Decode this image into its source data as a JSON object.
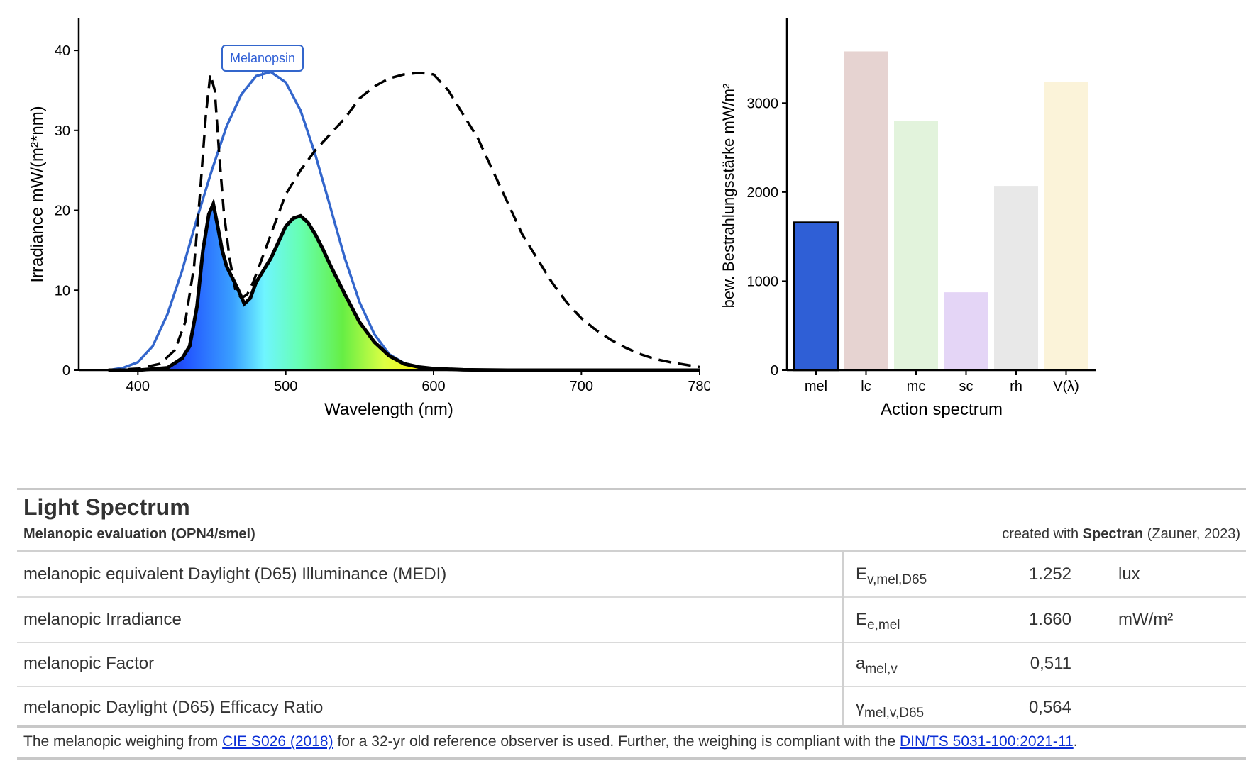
{
  "chart_data": [
    {
      "type": "line",
      "xlabel": "Wavelength (nm)",
      "ylabel": "Irradiance  mW/(m²*nm)",
      "xlim": [
        360,
        780
      ],
      "ylim": [
        0,
        44
      ],
      "xticks": [
        400,
        500,
        600,
        700,
        780
      ],
      "yticks": [
        0,
        10,
        20,
        30,
        40
      ],
      "annotation": "Melanopsin",
      "series": [
        {
          "style": "solid-black-filled-spectrum",
          "x": [
            380,
            400,
            420,
            430,
            435,
            440,
            444,
            448,
            451,
            454,
            457,
            460,
            464,
            468,
            472,
            476,
            480,
            485,
            490,
            495,
            500,
            505,
            510,
            515,
            520,
            525,
            530,
            540,
            550,
            560,
            570,
            580,
            590,
            600,
            620,
            650,
            700,
            780
          ],
          "y": [
            0,
            0,
            0.3,
            1.5,
            3,
            8,
            15,
            19.5,
            20.8,
            18,
            15,
            13,
            11.5,
            10,
            8.3,
            9,
            11,
            12.5,
            14,
            16,
            18,
            19,
            19.3,
            18.5,
            17,
            15.2,
            13.2,
            9.5,
            6,
            3.5,
            1.8,
            0.8,
            0.4,
            0.2,
            0.05,
            0,
            0,
            0
          ]
        },
        {
          "style": "dashed-black",
          "x": [
            380,
            400,
            415,
            425,
            432,
            438,
            442,
            446,
            449,
            452,
            455,
            458,
            462,
            466,
            470,
            474,
            478,
            482,
            490,
            500,
            510,
            520,
            530,
            540,
            550,
            560,
            570,
            580,
            590,
            600,
            610,
            620,
            630,
            640,
            650,
            660,
            670,
            680,
            690,
            700,
            710,
            720,
            730,
            740,
            750,
            760,
            770,
            780
          ],
          "y": [
            0,
            0.2,
            0.8,
            2.5,
            6,
            13,
            22,
            32,
            37,
            35,
            27,
            20,
            14,
            10,
            9,
            9.5,
            11,
            13,
            17,
            22,
            25,
            27.5,
            29.5,
            31.5,
            34,
            35.5,
            36.5,
            37,
            37.2,
            37,
            35,
            32,
            29,
            25,
            21,
            17,
            14,
            11,
            8.5,
            6.5,
            5,
            3.8,
            2.8,
            2,
            1.4,
            1,
            0.7,
            0.4
          ]
        },
        {
          "style": "solid-blue",
          "x": [
            380,
            390,
            400,
            410,
            420,
            430,
            440,
            450,
            460,
            470,
            480,
            490,
            500,
            510,
            520,
            530,
            540,
            550,
            560,
            570,
            580,
            590,
            600,
            620,
            650,
            700,
            780
          ],
          "y": [
            0,
            0.3,
            1,
            3,
            7,
            12.5,
            19,
            25,
            30.5,
            34.5,
            36.8,
            37.3,
            36,
            32.5,
            27,
            20.5,
            14,
            8.5,
            4.5,
            2,
            0.9,
            0.4,
            0.2,
            0.05,
            0,
            0,
            0
          ]
        }
      ]
    },
    {
      "type": "bar",
      "xlabel": "Action spectrum",
      "ylabel": "bew. Bestrahlungsstärke  mW/m²",
      "ylim": [
        0,
        3950
      ],
      "yticks": [
        0,
        1000,
        2000,
        3000
      ],
      "categories": [
        "mel",
        "lc",
        "mc",
        "sc",
        "rh",
        "V(λ)"
      ],
      "values": [
        1660,
        3580,
        2800,
        875,
        2070,
        3240
      ],
      "colors": [
        "#2f5fd6",
        "#e6d3d1",
        "#e2f3dc",
        "#e4d5f6",
        "#e8e8e8",
        "#fbf3d9"
      ]
    }
  ],
  "table": {
    "title": "Light Spectrum",
    "subtitle": "Melanopic evaluation (OPN4/smel)",
    "credit_prefix": "created with ",
    "credit_tool": "Spectran",
    "credit_suffix": " (Zauner, 2023)",
    "rows": [
      {
        "label": "melanopic equivalent Daylight (D65) Illuminance (MEDI)",
        "sym": "E",
        "sub": "v,mel,D65",
        "value": "1.252",
        "unit": "lux"
      },
      {
        "label": "melanopic Irradiance",
        "sym": "E",
        "sub": "e,mel",
        "value": "1.660",
        "unit": "mW/m²"
      },
      {
        "label": "melanopic Factor",
        "sym": "a",
        "sub": "mel,v",
        "value": "0,511",
        "unit": ""
      },
      {
        "label": "melanopic Daylight (D65) Efficacy Ratio",
        "sym": "γ",
        "sub": "mel,v,D65",
        "value": "0,564",
        "unit": ""
      }
    ],
    "footnote_1": "The melanopic weighing from ",
    "footnote_link_1": "CIE S026 (2018)",
    "footnote_2": " for a 32-yr old reference observer is used. Further, the weighing is compliant with the ",
    "footnote_link_2": "DIN/TS 5031-100:2021-11",
    "footnote_3": "."
  }
}
